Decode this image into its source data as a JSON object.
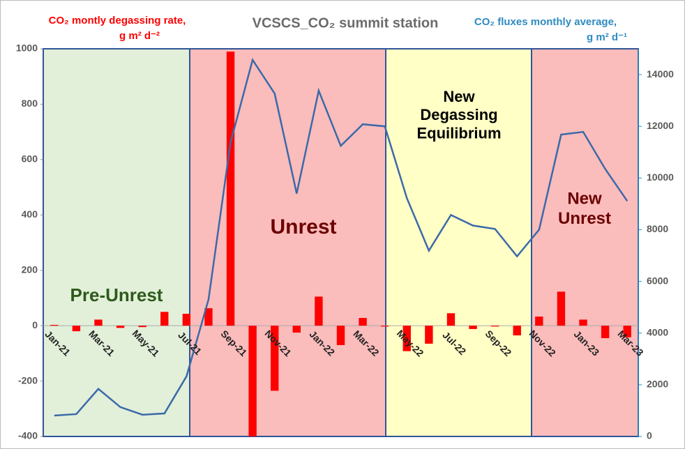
{
  "chart_data": {
    "type": "bar-line",
    "title": "VCSCS_CO₂  summit station",
    "y_label": [
      "CO₂  montly degassing rate,",
      "g m² d⁻²"
    ],
    "y2_label": [
      "CO₂  fluxes monthly average,",
      "g m² d⁻¹"
    ],
    "categories": [
      "Jan-21",
      null,
      "Mar-21",
      null,
      "May-21",
      null,
      "Jul-21",
      null,
      "Sep-21",
      null,
      "Nov-21",
      null,
      "Jan-22",
      null,
      "Mar-22",
      null,
      "May-22",
      null,
      "Jul-22",
      null,
      "Sep-22",
      null,
      "Nov-22",
      null,
      "Jan-23",
      null,
      "Mar-23"
    ],
    "series": [
      {
        "type": "bar",
        "color": "#ff0000",
        "values": [
          3,
          -20,
          22,
          -8,
          -5,
          50,
          43,
          63,
          990,
          -400,
          -235,
          -25,
          105,
          -70,
          28,
          -3,
          -92,
          -65,
          45,
          -12,
          -3,
          -35,
          33,
          123,
          22,
          -45,
          -42
        ]
      },
      {
        "type": "line",
        "axis": "y2",
        "color": "#3a6aa8",
        "values": [
          810,
          865,
          1840,
          1135,
          840,
          890,
          2325,
          5300,
          11380,
          14570,
          13270,
          9400,
          13380,
          11245,
          12080,
          12000,
          9220,
          7190,
          8570,
          8160,
          8030,
          6970,
          8000,
          11680,
          11785,
          10350,
          9110
        ]
      }
    ],
    "ylim": [
      -400,
      1000
    ],
    "yticks": [
      -400,
      -200,
      0,
      200,
      400,
      600,
      800,
      1000
    ],
    "y2lim": [
      0,
      15000
    ],
    "y2ticks": [
      0,
      2000,
      4000,
      6000,
      8000,
      10000,
      12000,
      14000
    ],
    "annotations": [
      [
        "Pre-Unrest"
      ],
      [
        "Unrest"
      ],
      [
        "New",
        "Degassing",
        "Equilibrium"
      ],
      [
        "New",
        "Unrest"
      ]
    ]
  }
}
